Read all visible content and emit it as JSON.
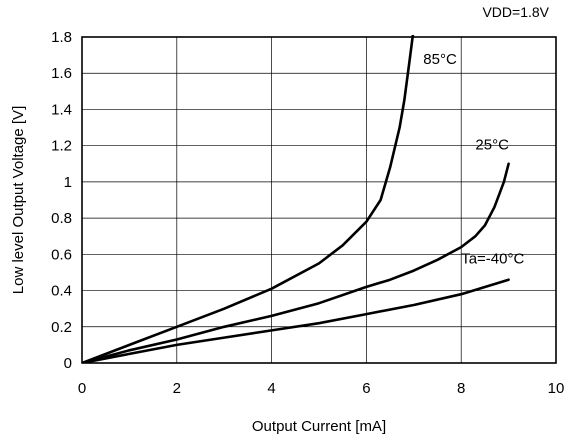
{
  "chart_data": {
    "type": "line",
    "title": "",
    "corner_note": "VDD=1.8V",
    "xlabel": "Output Current [mA]",
    "ylabel": "Low level Output Voltage [V]",
    "xlim": [
      0,
      10
    ],
    "ylim": [
      0,
      1.8
    ],
    "xticks": [
      0,
      2,
      4,
      6,
      8,
      10
    ],
    "xtick_labels": [
      "0",
      "2",
      "4",
      "6",
      "8",
      "10"
    ],
    "yticks": [
      0,
      0.2,
      0.4,
      0.6,
      0.8,
      1,
      1.2,
      1.4,
      1.6,
      1.8
    ],
    "ytick_labels": [
      "0",
      "0.2",
      "0.4",
      "0.6",
      "0.8",
      "1",
      "1.2",
      "1.4",
      "1.6",
      "1.8"
    ],
    "grid": true,
    "line_color": "#000000",
    "series": [
      {
        "name": "85°C",
        "x": [
          0,
          1,
          2,
          3,
          4,
          5,
          5.5,
          6,
          6.3,
          6.5,
          6.7,
          6.8,
          6.9,
          7.0
        ],
        "y": [
          0,
          0.1,
          0.2,
          0.3,
          0.41,
          0.55,
          0.65,
          0.78,
          0.9,
          1.08,
          1.3,
          1.45,
          1.65,
          1.85
        ]
      },
      {
        "name": "25°C",
        "x": [
          0,
          1,
          2,
          3,
          4,
          5,
          6,
          6.5,
          7,
          7.5,
          8,
          8.3,
          8.5,
          8.7,
          8.9,
          9.0
        ],
        "y": [
          0,
          0.07,
          0.13,
          0.2,
          0.26,
          0.33,
          0.42,
          0.46,
          0.51,
          0.57,
          0.64,
          0.7,
          0.76,
          0.86,
          1.0,
          1.1
        ]
      },
      {
        "name": "Ta=-40°C",
        "x": [
          0,
          1,
          2,
          3,
          4,
          5,
          6,
          7,
          8,
          9
        ],
        "y": [
          0,
          0.05,
          0.1,
          0.14,
          0.18,
          0.22,
          0.27,
          0.32,
          0.38,
          0.46
        ]
      }
    ],
    "annotations": [
      {
        "text": "85°C",
        "x": 7.2,
        "y": 1.65
      },
      {
        "text": "25°C",
        "x": 8.3,
        "y": 1.18
      },
      {
        "text": "Ta=-40°C",
        "x": 8.0,
        "y": 0.55
      }
    ]
  }
}
